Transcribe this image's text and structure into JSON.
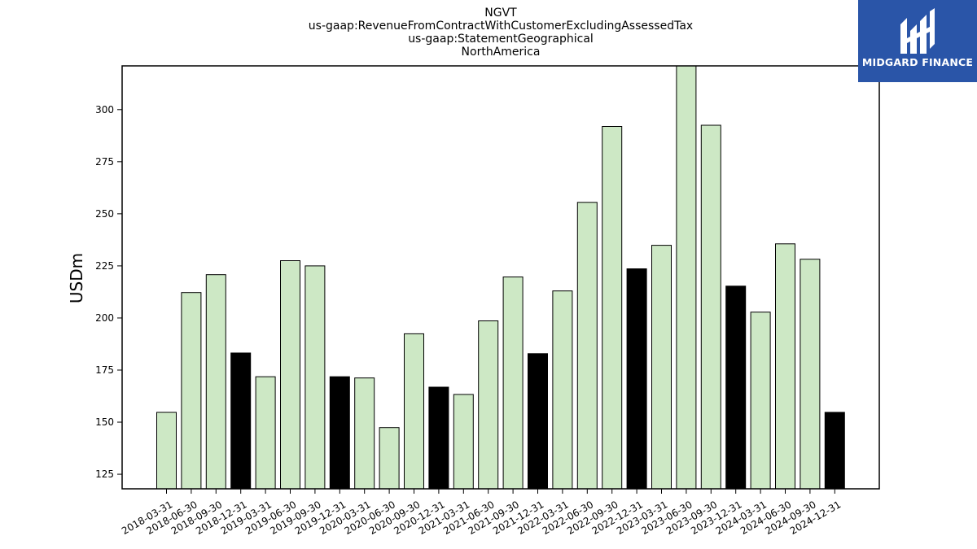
{
  "chart_data": {
    "type": "bar",
    "title_lines": [
      "NGVT",
      "us-gaap:RevenueFromContractWithCustomerExcludingAssessedTax",
      "us-gaap:StatementGeographical",
      "NorthAmerica"
    ],
    "xlabel": "",
    "ylabel": "USDm",
    "ylim": [
      118,
      321
    ],
    "yticks": [
      125,
      150,
      175,
      200,
      225,
      250,
      275,
      300
    ],
    "categories": [
      "2018-03-31",
      "2018-06-30",
      "2018-09-30",
      "2018-12-31",
      "2019-03-31",
      "2019-06-30",
      "2019-09-30",
      "2019-12-31",
      "2020-03-31",
      "2020-06-30",
      "2020-09-30",
      "2020-12-31",
      "2021-03-31",
      "2021-06-30",
      "2021-09-30",
      "2021-12-31",
      "2022-03-31",
      "2022-06-30",
      "2022-09-30",
      "2022-12-31",
      "2023-03-31",
      "2023-06-30",
      "2023-09-30",
      "2023-12-31",
      "2024-03-31",
      "2024-06-30",
      "2024-09-30",
      "2024-12-31"
    ],
    "values": [
      154.7,
      212.2,
      220.8,
      183.2,
      171.8,
      227.5,
      225.0,
      171.8,
      171.2,
      147.4,
      192.4,
      166.8,
      163.3,
      198.6,
      219.7,
      182.9,
      213.0,
      255.5,
      291.9,
      223.6,
      234.9,
      322.0,
      292.5,
      215.3,
      202.8,
      235.6,
      228.2,
      154.7
    ],
    "colors": {
      "quarter": "#cde8c5",
      "year_end": "#000000",
      "edge": "#000000"
    },
    "grid": false,
    "legend": "none"
  },
  "logo": {
    "text": "MIDGARD FINANCE",
    "background": "#2a55a8"
  }
}
